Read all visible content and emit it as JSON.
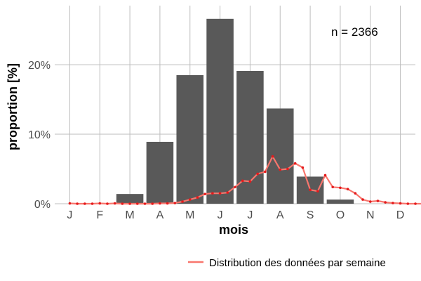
{
  "chart_data": {
    "type": "bar",
    "categories": [
      "J",
      "F",
      "M",
      "A",
      "M",
      "J",
      "J",
      "A",
      "S",
      "O",
      "N",
      "D"
    ],
    "series": [
      {
        "values": [
          0,
          0,
          1.4,
          8.9,
          18.5,
          26.6,
          19.1,
          13.7,
          3.9,
          0.6,
          0,
          0
        ],
        "color": "#595959"
      },
      {
        "name": "Distribution des données par semaine",
        "type": "line",
        "color": "#f8766d",
        "x": [
          0,
          0.25,
          0.5,
          0.75,
          1,
          1.25,
          1.5,
          1.75,
          2,
          2.25,
          2.5,
          2.75,
          3,
          3.25,
          3.5,
          3.75,
          4,
          4.25,
          4.5,
          4.75,
          5,
          5.25,
          5.5,
          5.75,
          6,
          6.25,
          6.5,
          6.75,
          7,
          7.25,
          7.5,
          7.75,
          8,
          8.25,
          8.5,
          8.75,
          9,
          9.25,
          9.5,
          9.75,
          10,
          10.25,
          10.5,
          10.75,
          11,
          11.25,
          11.5,
          11.75
        ],
        "values": [
          0.05,
          0,
          0,
          0,
          0.05,
          0,
          0.05,
          0,
          0,
          0,
          0,
          0,
          0.05,
          0.05,
          0.1,
          0.3,
          0.6,
          0.9,
          1.4,
          1.5,
          1.5,
          1.6,
          2.4,
          3.3,
          3.2,
          4.3,
          4.6,
          6.8,
          4.9,
          5.0,
          5.8,
          5.2,
          2.0,
          1.8,
          4.1,
          2.4,
          2.3,
          2.1,
          1.5,
          0.6,
          0.3,
          0.4,
          0.2,
          0.1,
          0.05,
          0,
          0,
          0
        ]
      }
    ],
    "xlabel": "mois",
    "ylabel": "proportion [%]",
    "ylim": [
      0,
      28.5
    ],
    "yticks": [
      "0%",
      "10%",
      "20%"
    ],
    "annotation": "n = 2366",
    "grid": true,
    "legend": "bottom-right"
  }
}
